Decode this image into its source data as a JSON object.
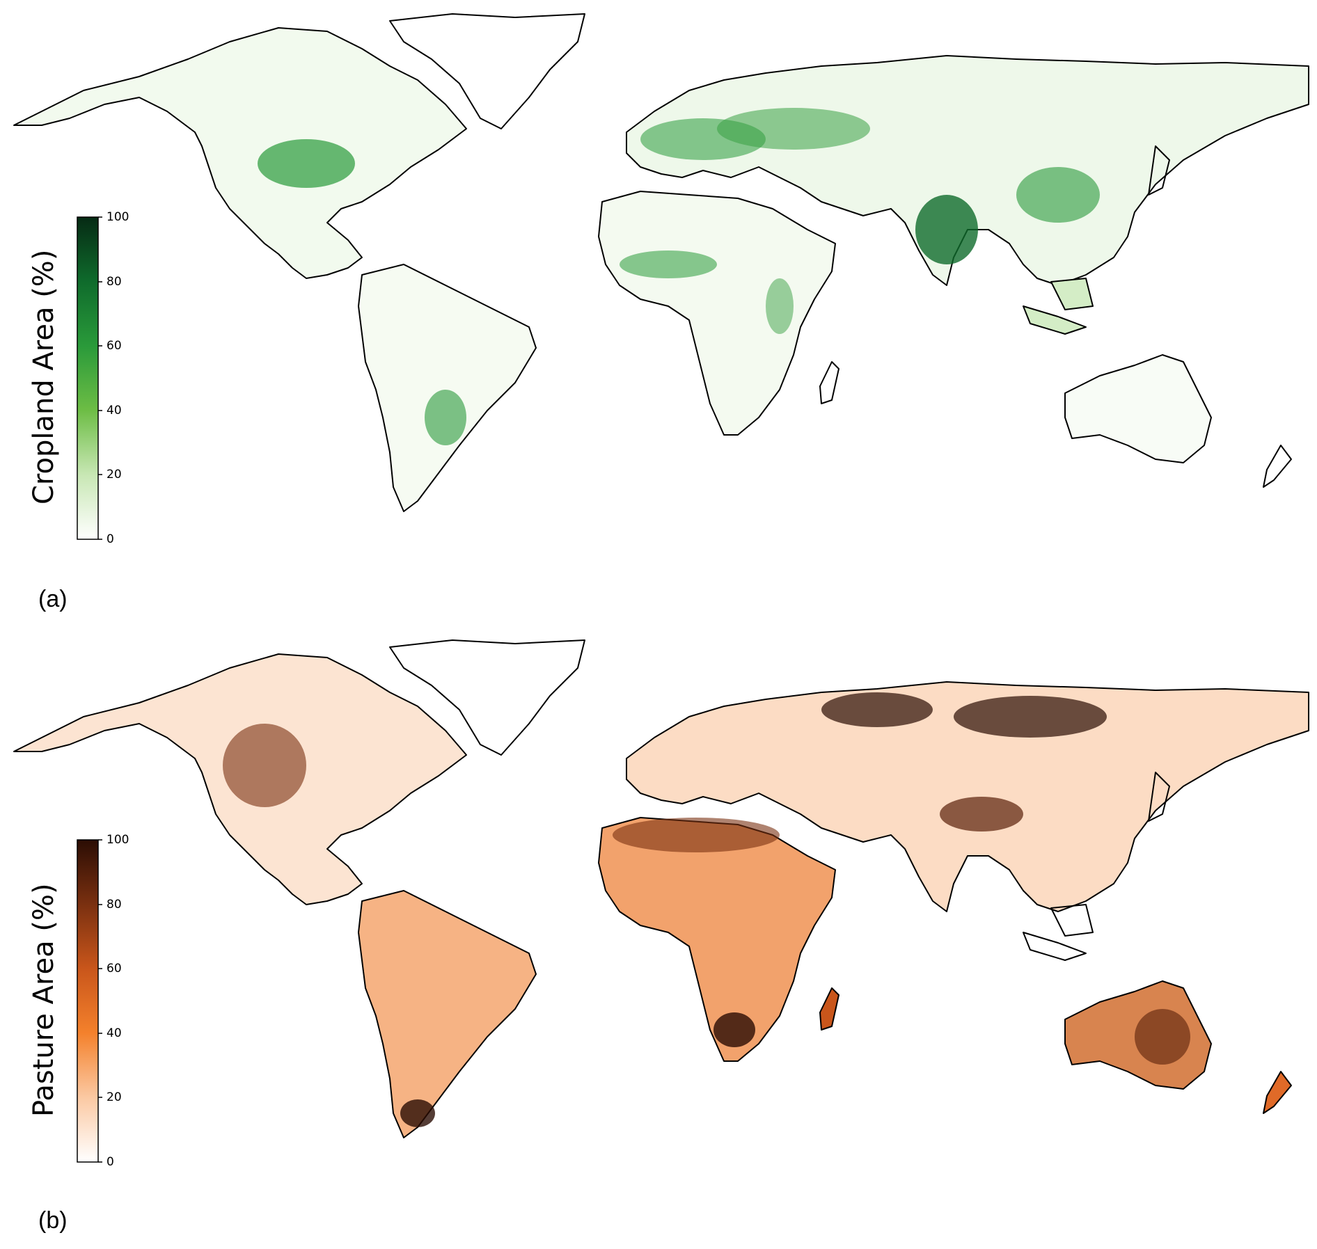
{
  "panels": [
    {
      "label": "(a)",
      "colorbar": {
        "title": "Cropland Area (%)",
        "ticks": [
          "0",
          "20",
          "40",
          "60",
          "80",
          "100"
        ],
        "range": [
          0,
          100
        ],
        "colors": [
          "#ffffff",
          "#c8e7b4",
          "#6dbd45",
          "#2a9a3a",
          "#0f6b2c",
          "#062a14"
        ]
      }
    },
    {
      "label": "(b)",
      "colorbar": {
        "title": "Pasture Area (%)",
        "ticks": [
          "0",
          "20",
          "40",
          "60",
          "80",
          "100"
        ],
        "range": [
          0,
          100
        ],
        "colors": [
          "#ffffff",
          "#fbc9a3",
          "#f4812c",
          "#c9561b",
          "#7a3010",
          "#2b0d04"
        ]
      }
    }
  ]
}
